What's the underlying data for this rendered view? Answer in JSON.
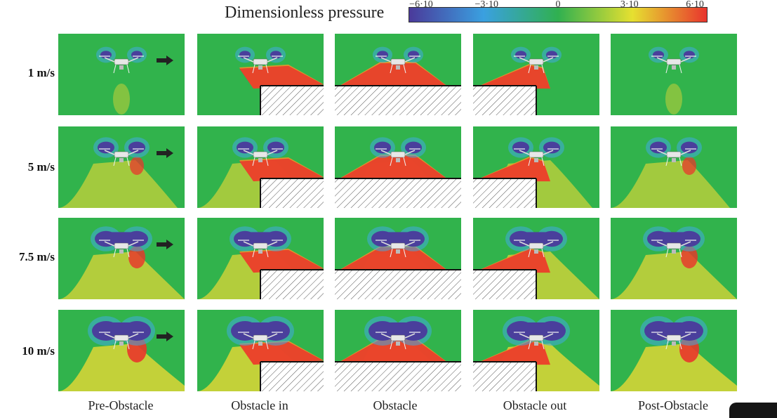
{
  "colorbar": {
    "title": "Dimensionless pressure",
    "ticks": [
      "−6·10",
      "−3·10",
      "0",
      "3·10",
      "6·10"
    ],
    "colors": [
      "#4a3a9a",
      "#3aa0e0",
      "#30b050",
      "#e6e030",
      "#e8342e"
    ]
  },
  "rows": [
    {
      "label": "1 m/s"
    },
    {
      "label": "5 m/s"
    },
    {
      "label": "7.5 m/s"
    },
    {
      "label": "10 m/s"
    }
  ],
  "columns": [
    {
      "label": "Pre-Obstacle"
    },
    {
      "label": "Obstacle in"
    },
    {
      "label": "Obstacle"
    },
    {
      "label": "Obstacle out"
    },
    {
      "label": "Post-Obstacle"
    }
  ],
  "colors": {
    "field_green": "#31b34c",
    "low_pressure": "#4a3f9c",
    "low_halo": "#3fa9e0",
    "high_pressure": "#e9362b",
    "mid_yellow": "#e9d835",
    "mid_orange": "#f2932a",
    "obstacle_hatch": "#555555"
  }
}
